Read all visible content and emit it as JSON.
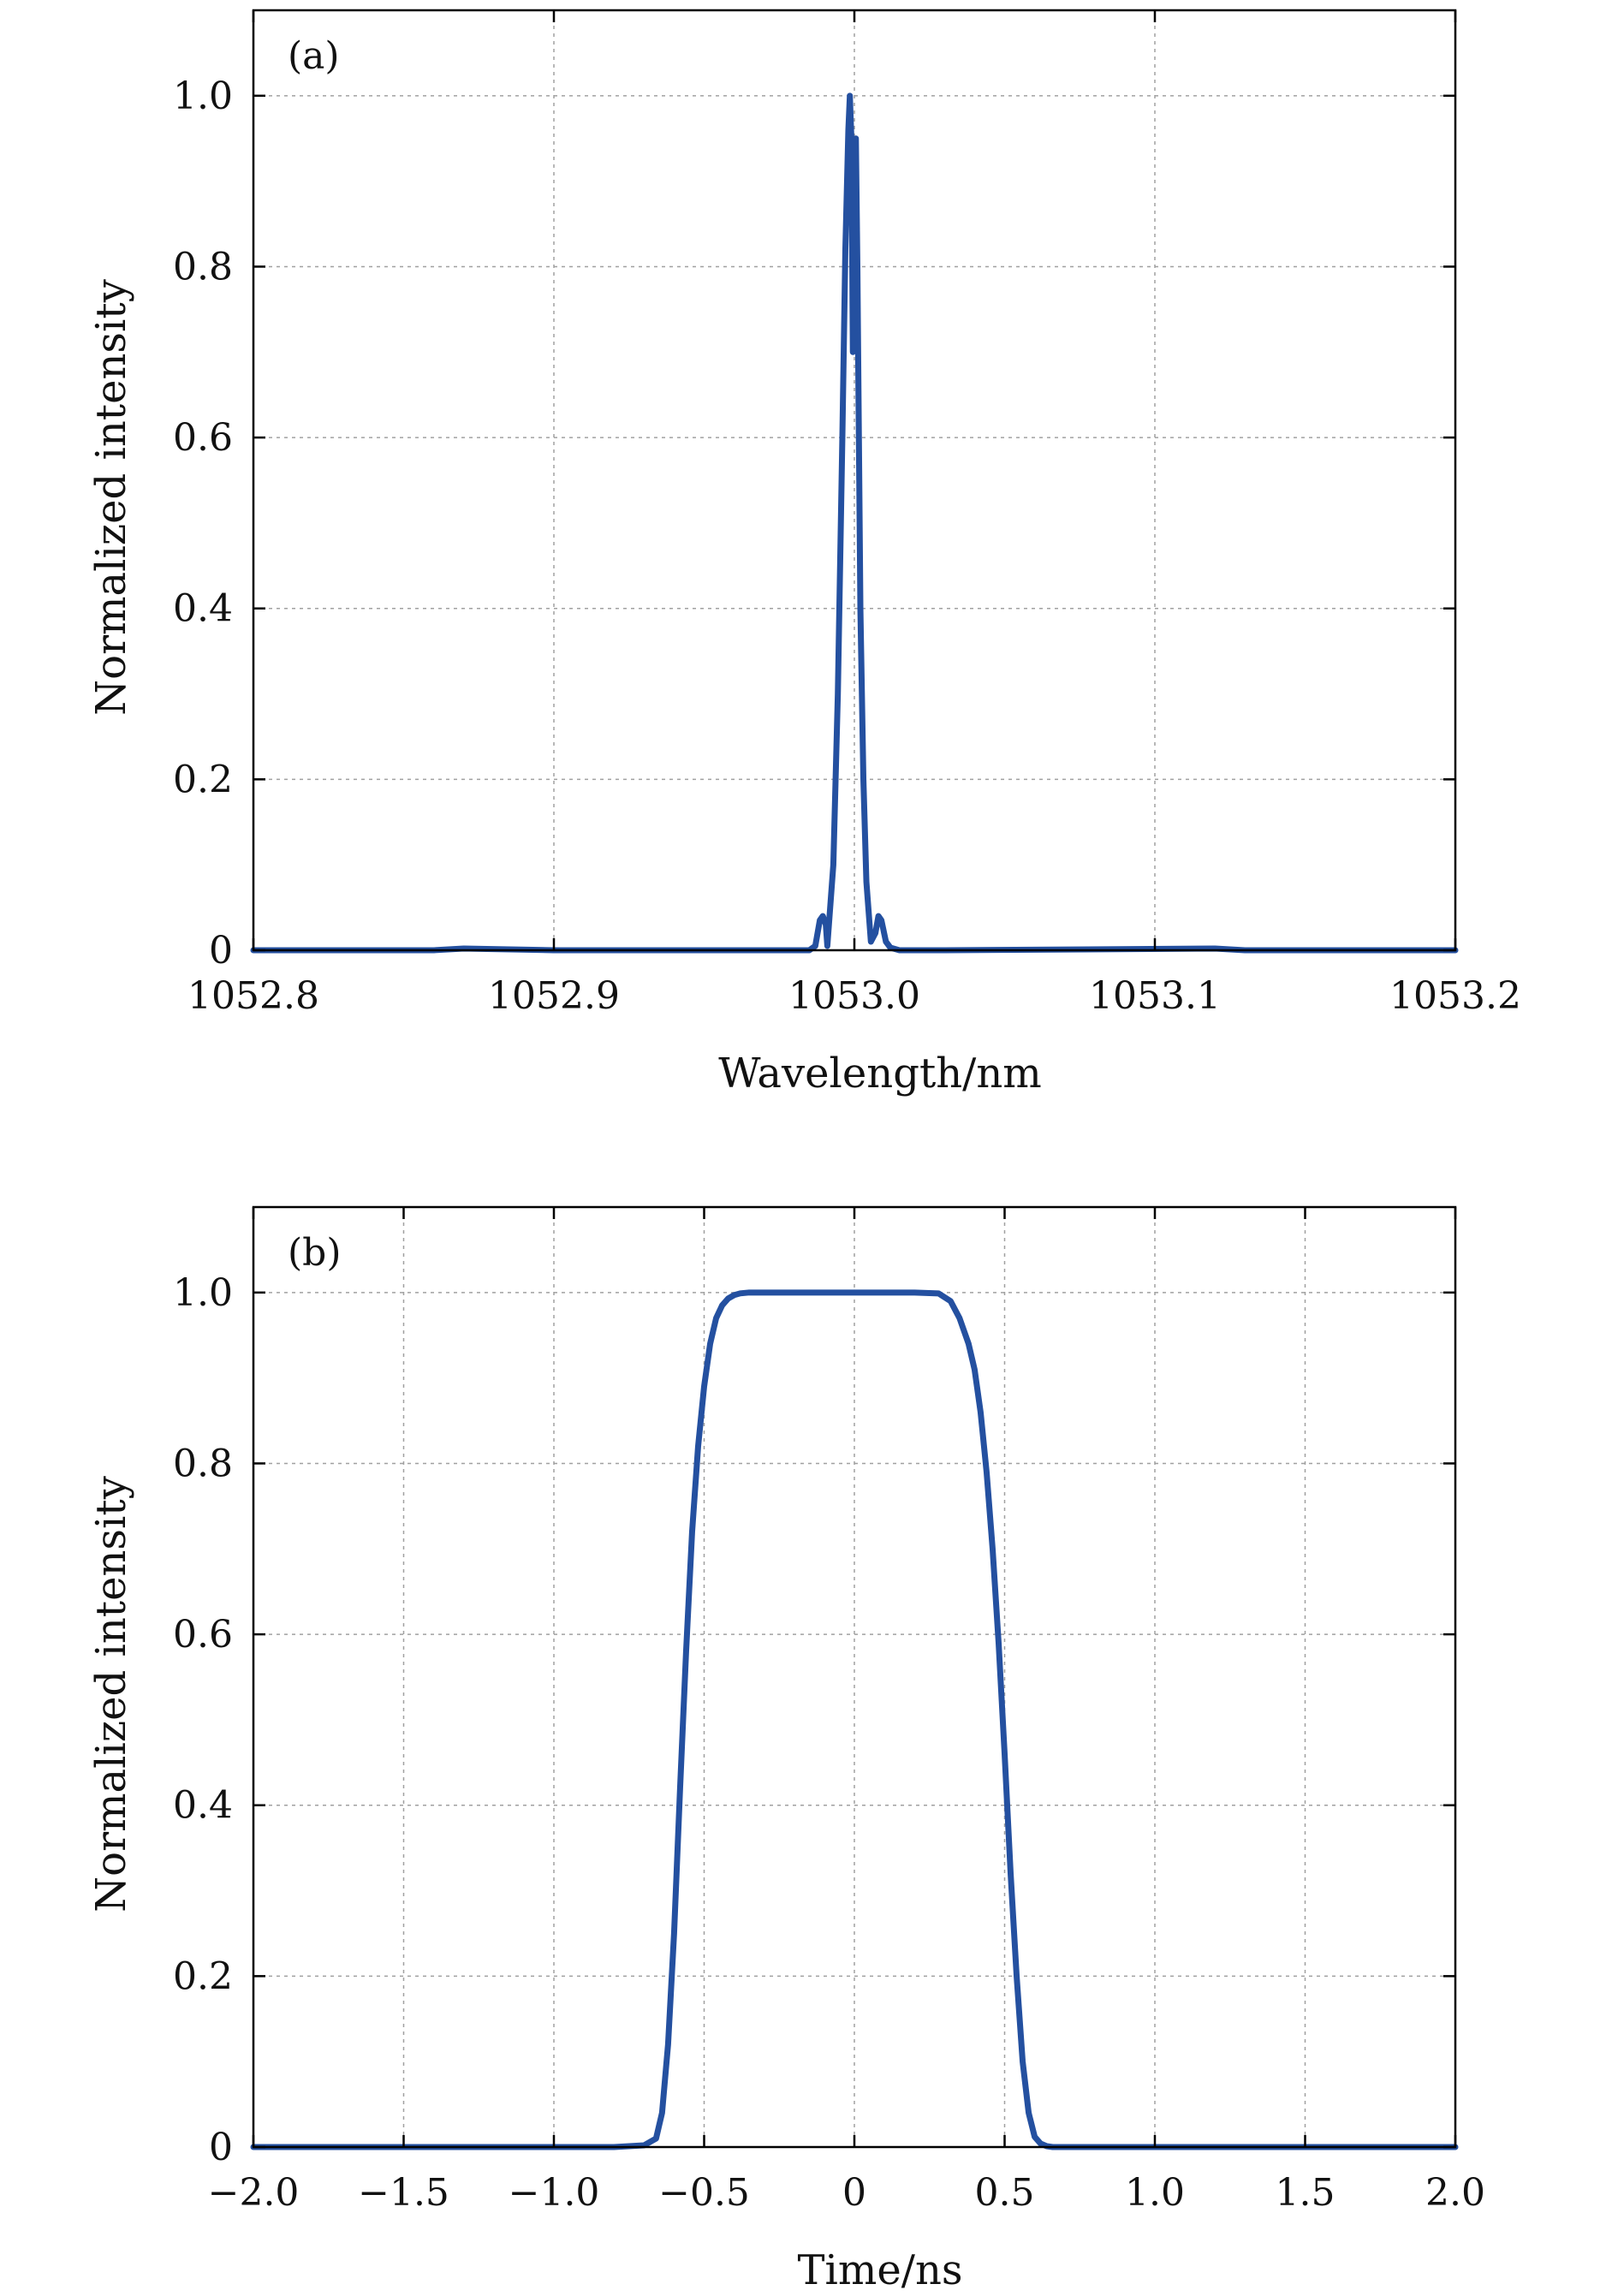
{
  "colors": {
    "series": "#2450a0",
    "frame": "#000000",
    "grid": "#a0a0a0",
    "background": "#ffffff"
  },
  "chart_data": [
    {
      "type": "line",
      "panel_label": "(a)",
      "title": "",
      "xlabel": "Wavelength/nm",
      "ylabel": "Normalized intensity",
      "xlim": [
        1052.8,
        1053.2
      ],
      "ylim": [
        0,
        1.1
      ],
      "xticks": [
        1052.8,
        1052.9,
        1053.0,
        1053.1,
        1053.2
      ],
      "xtick_labels": [
        "1052.8",
        "1052.9",
        "1053.0",
        "1053.1",
        "1053.2"
      ],
      "yticks": [
        0,
        0.2,
        0.4,
        0.6,
        0.8,
        1.0
      ],
      "ytick_labels": [
        "0",
        "0.2",
        "0.4",
        "0.6",
        "0.8",
        "1.0"
      ],
      "grid": true,
      "series": [
        {
          "x": [
            1052.8,
            1052.86,
            1052.87,
            1052.9,
            1052.97,
            1052.985,
            1052.987,
            1052.9885,
            1052.9895,
            1052.9905,
            1052.991,
            1052.993,
            1052.9945,
            1052.996,
            1052.997,
            1052.998,
            1052.9985,
            1052.999,
            1052.9995,
            1053.0,
            1053.0005,
            1053.001,
            1053.0015,
            1053.002,
            1053.003,
            1053.004,
            1053.0055,
            1053.007,
            1053.008,
            1053.009,
            1053.0105,
            1053.012,
            1053.015,
            1053.03,
            1053.12,
            1053.13,
            1053.2
          ],
          "y": [
            0,
            0,
            0.002,
            0,
            0,
            0,
            0.005,
            0.035,
            0.04,
            0.03,
            0.005,
            0.1,
            0.3,
            0.6,
            0.82,
            0.96,
            1.0,
            0.95,
            0.7,
            0.85,
            0.95,
            0.8,
            0.6,
            0.4,
            0.2,
            0.08,
            0.01,
            0.02,
            0.04,
            0.035,
            0.01,
            0.003,
            0,
            0,
            0.002,
            0,
            0
          ]
        }
      ]
    },
    {
      "type": "line",
      "panel_label": "(b)",
      "title": "",
      "xlabel": "Time/ns",
      "ylabel": "Normalized intensity",
      "xlim": [
        -2.0,
        2.0
      ],
      "ylim": [
        0,
        1.1
      ],
      "xticks": [
        -2.0,
        -1.5,
        -1.0,
        -0.5,
        0,
        0.5,
        1.0,
        1.5,
        2.0
      ],
      "xtick_labels": [
        "−2.0",
        "−1.5",
        "−1.0",
        "−0.5",
        "0",
        "0.5",
        "1.0",
        "1.5",
        "2.0"
      ],
      "yticks": [
        0,
        0.2,
        0.4,
        0.6,
        0.8,
        1.0
      ],
      "ytick_labels": [
        "0",
        "0.2",
        "0.4",
        "0.6",
        "0.8",
        "1.0"
      ],
      "grid": true,
      "series": [
        {
          "x": [
            -2.0,
            -0.8,
            -0.7,
            -0.66,
            -0.64,
            -0.62,
            -0.6,
            -0.58,
            -0.56,
            -0.54,
            -0.52,
            -0.5,
            -0.48,
            -0.46,
            -0.44,
            -0.42,
            -0.4,
            -0.38,
            -0.35,
            -0.3,
            -0.2,
            0,
            0.2,
            0.28,
            0.32,
            0.35,
            0.38,
            0.4,
            0.42,
            0.44,
            0.46,
            0.48,
            0.5,
            0.52,
            0.54,
            0.56,
            0.58,
            0.6,
            0.62,
            0.64,
            0.66,
            0.7,
            0.8,
            2.0
          ],
          "y": [
            0,
            0,
            0.002,
            0.01,
            0.04,
            0.12,
            0.25,
            0.42,
            0.58,
            0.72,
            0.82,
            0.89,
            0.94,
            0.97,
            0.985,
            0.993,
            0.997,
            0.999,
            1.0,
            1.0,
            1.0,
            1.0,
            1.0,
            0.999,
            0.99,
            0.97,
            0.94,
            0.91,
            0.86,
            0.79,
            0.7,
            0.59,
            0.46,
            0.32,
            0.2,
            0.1,
            0.04,
            0.012,
            0.004,
            0.001,
            0,
            0,
            0,
            0
          ]
        }
      ]
    }
  ]
}
